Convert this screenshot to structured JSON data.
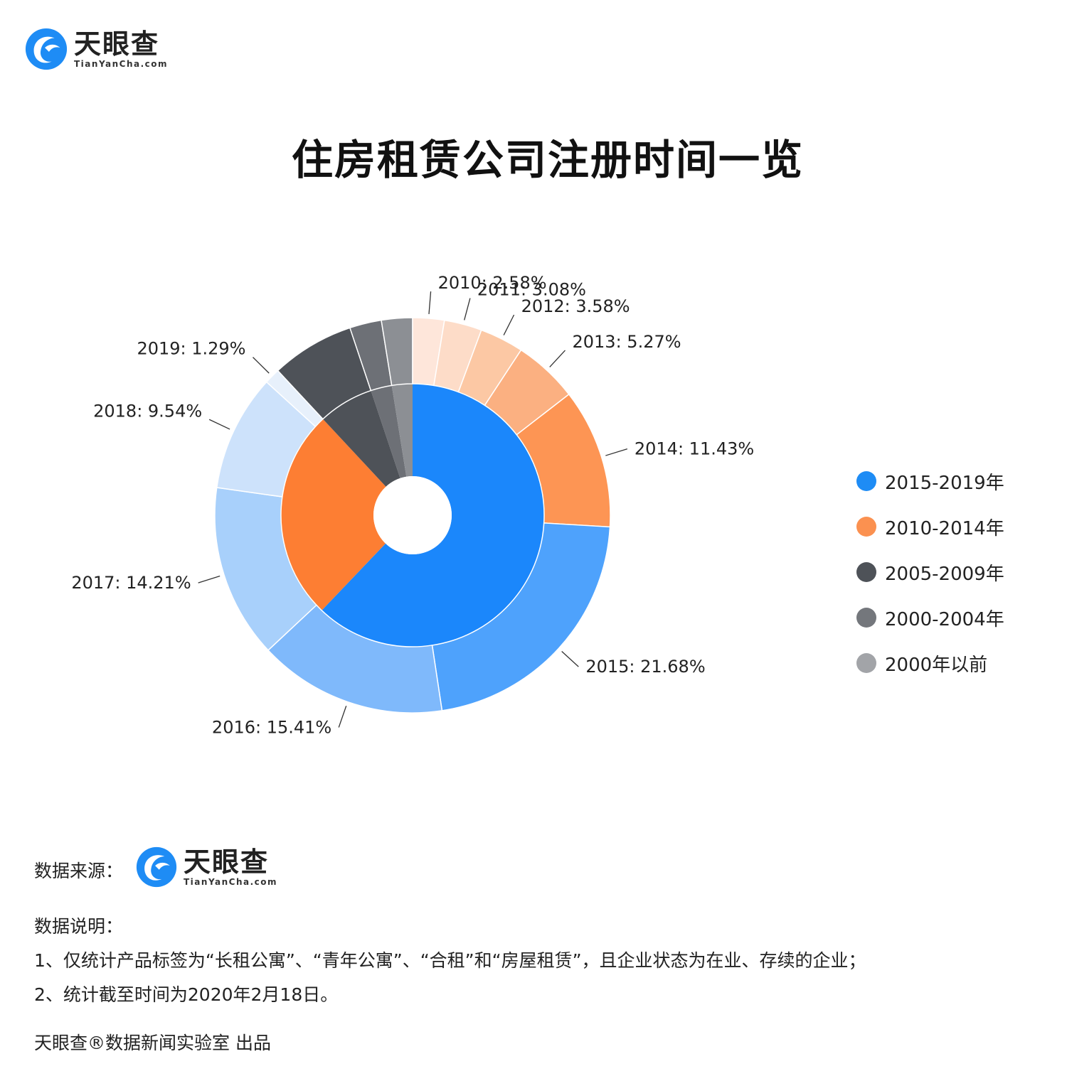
{
  "header": {
    "logo_cn": "天眼查",
    "logo_en": "TianYanCha.com"
  },
  "title": "住房租赁公司注册时间一览",
  "colors": {
    "brand_blue": "#1E8CF5",
    "orange": "#FB7A2C"
  },
  "chart_data": {
    "type": "pie",
    "subtype": "nested-donut",
    "title": "住房租赁公司注册时间一览",
    "inner_ring": [
      {
        "name": "2015-2019年",
        "value": 62.13,
        "color": "#1B87FB"
      },
      {
        "name": "2010-2014年",
        "value": 25.94,
        "color": "#FD7E33"
      },
      {
        "name": "2005-2009年",
        "value": 6.8,
        "color": "#4E5258"
      },
      {
        "name": "2000-2004年",
        "value": 2.6,
        "color": "#6D7076"
      },
      {
        "name": "2000年以前",
        "value": 2.53,
        "color": "#8C8F94"
      }
    ],
    "outer_ring": [
      {
        "label": "2014: 11.43%",
        "year": "2014",
        "value": 11.43,
        "color": "#FD9554"
      },
      {
        "label": "2015: 21.68%",
        "year": "2015",
        "value": 21.68,
        "color": "#4EA2FC"
      },
      {
        "label": "2016: 15.41%",
        "year": "2016",
        "value": 15.41,
        "color": "#7FB9FB"
      },
      {
        "label": "2017: 14.21%",
        "year": "2017",
        "value": 14.21,
        "color": "#A8D0FB"
      },
      {
        "label": "2018: 9.54%",
        "year": "2018",
        "value": 9.54,
        "color": "#CDE2FB"
      },
      {
        "label": "2019: 1.29%",
        "year": "2019",
        "value": 1.29,
        "color": "#E7F0FB"
      },
      {
        "label": "",
        "year": "2005-2009",
        "value": 6.8,
        "color": "#4E5258"
      },
      {
        "label": "",
        "year": "2000-2004",
        "value": 2.6,
        "color": "#6D7076"
      },
      {
        "label": "",
        "year": "before-2000",
        "value": 2.53,
        "color": "#8C8F94"
      },
      {
        "label": "2010: 2.58%",
        "year": "2010",
        "value": 2.58,
        "color": "#FEE6DA"
      },
      {
        "label": "2011: 3.08%",
        "year": "2011",
        "value": 3.08,
        "color": "#FDDCC8"
      },
      {
        "label": "2012: 3.58%",
        "year": "2012",
        "value": 3.58,
        "color": "#FCC8A4"
      },
      {
        "label": "2013: 5.27%",
        "year": "2013",
        "value": 5.27,
        "color": "#FBB081"
      }
    ],
    "legend_position": "right"
  },
  "legend": [
    {
      "label": "2015-2019年",
      "color": "#1E8CF5"
    },
    {
      "label": "2010-2014年",
      "color": "#FB9150"
    },
    {
      "label": "2005-2009年",
      "color": "#4E5258"
    },
    {
      "label": "2000-2004年",
      "color": "#74777C"
    },
    {
      "label": "2000年以前",
      "color": "#A2A4A8"
    }
  ],
  "footer": {
    "source_label": "数据来源：",
    "notes_title": "数据说明：",
    "note1": "1、仅统计产品标签为“长租公寓”、“青年公寓”、“合租”和“房屋租赁”，且企业状态为在业、存续的企业；",
    "note2": "2、统计截至时间为2020年2月18日。",
    "credit": "天眼查®数据新闻实验室 出品"
  }
}
